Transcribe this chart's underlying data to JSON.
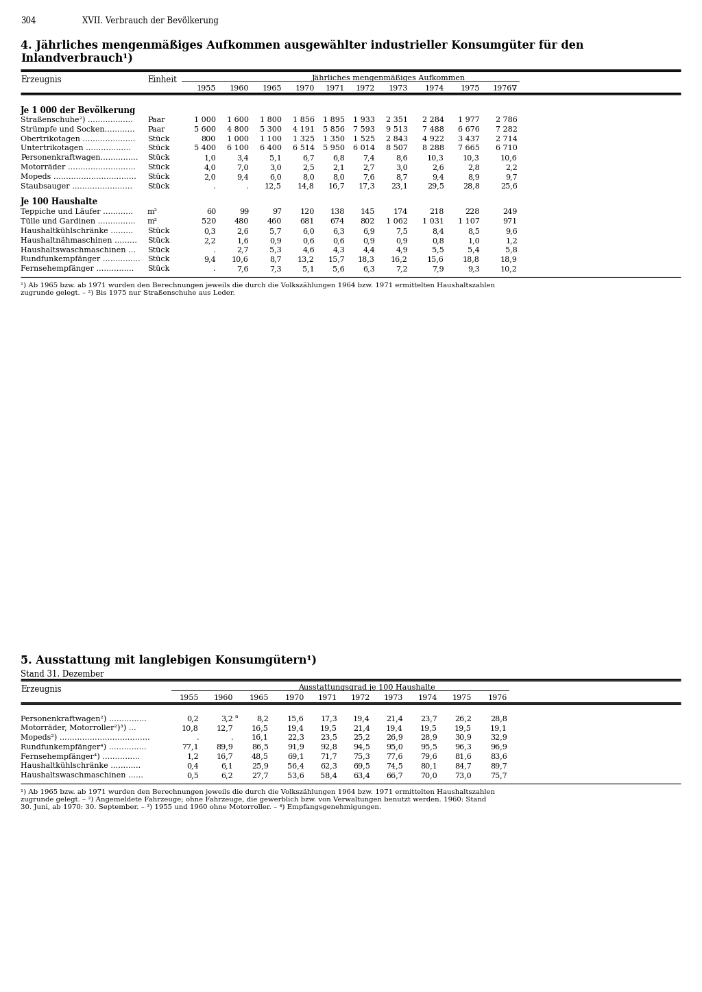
{
  "page_num": "304",
  "chapter": "XVII. Verbrauch der Bevölkerung",
  "title4_line1": "4. Jährliches mengenmäßiges Aufkommen ausgewählter industrieller Konsumgüter für den",
  "title4_line2": "Inlandverbrauch¹)",
  "table4_header_left": "Erzeugnis",
  "table4_header_einheit": "Einheit",
  "table4_span_header": "Jährliches mengenmäßiges Aufkommen",
  "table4_years": [
    "1955",
    "1960",
    "1965",
    "1970",
    "1971",
    "1972",
    "1973",
    "1974",
    "1975",
    "1976∇"
  ],
  "table4_section1": "Je 1 000 der Bevölkerung",
  "table4_rows1": [
    [
      "Straßenschuhe²) ………………",
      "Paar",
      "1 000",
      "1 600",
      "1 800",
      "1 856",
      "1 895",
      "1 933",
      "2 351",
      "2 284",
      "1 977",
      "2 786"
    ],
    [
      "Strümpfe und Socken…………",
      "Paar",
      "5 600",
      "4 800",
      "5 300",
      "4 191",
      "5 856",
      "7 593",
      "9 513",
      "7 488",
      "6 676",
      "7 282"
    ],
    [
      "Obertrikotagen …………………",
      "Stück",
      "800",
      "1 000",
      "1 100",
      "1 325",
      "1 350",
      "1 525",
      "2 843",
      "4 922",
      "3 437",
      "2 714"
    ],
    [
      "Untertrikotagen ………………",
      "Stück",
      "5 400",
      "6 100",
      "6 400",
      "6 514",
      "5 950",
      "6 014",
      "8 507",
      "8 288",
      "7 665",
      "6 710"
    ],
    [
      "Personenkraftwagen……………",
      "Stück",
      "1,0",
      "3,4",
      "5,1",
      "6,7",
      "6,8",
      "7,4",
      "8,6",
      "10,3",
      "10,3",
      "10,6"
    ],
    [
      "Motorräder ………………………",
      "Stück",
      "4,0",
      "7,0",
      "3,0",
      "2,5",
      "2,1",
      "2,7",
      "3,0",
      "2,6",
      "2,8",
      "2,2"
    ],
    [
      "Mopeds ……………………………",
      "Stück",
      "2,0",
      "9,4",
      "6,0",
      "8,0",
      "8,0",
      "7,6",
      "8,7",
      "9,4",
      "8,9",
      "9,7"
    ],
    [
      "Staubsauger ……………………",
      "Stück",
      ".",
      ".",
      "12,5",
      "14,8",
      "16,7",
      "17,3",
      "23,1",
      "29,5",
      "28,8",
      "25,6"
    ]
  ],
  "table4_section2": "Je 100 Haushalte",
  "table4_rows2": [
    [
      "Teppiche und Läufer …………",
      "m²",
      "60",
      "99",
      "97",
      "120",
      "138",
      "145",
      "174",
      "218",
      "228",
      "249"
    ],
    [
      "Tülle und Gardinen ……………",
      "m²",
      "520",
      "480",
      "460",
      "681",
      "674",
      "802",
      "1 062",
      "1 031",
      "1 107",
      "971"
    ],
    [
      "Haushaltkühlschränke ………",
      "Stück",
      "0,3",
      "2,6",
      "5,7",
      "6,0",
      "6,3",
      "6,9",
      "7,5",
      "8,4",
      "8,5",
      "9,6"
    ],
    [
      "Haushaltnähmaschinen ………",
      "Stück",
      "2,2",
      "1,6",
      "0,9",
      "0,6",
      "0,6",
      "0,9",
      "0,9",
      "0,8",
      "1,0",
      "1,2"
    ],
    [
      "Haushaltswaschmaschinen …",
      "Stück",
      ".",
      "2,7",
      "5,3",
      "4,6",
      "4,3",
      "4,4",
      "4,9",
      "5,5",
      "5,4",
      "5,8"
    ],
    [
      "Rundfunkempfänger ……………",
      "Stück",
      "9,4",
      "10,6",
      "8,7",
      "13,2",
      "15,7",
      "18,3",
      "16,2",
      "15,6",
      "18,8",
      "18,9"
    ],
    [
      "Fernsehempfänger ……………",
      "Stück",
      ".",
      "7,6",
      "7,3",
      "5,1",
      "5,6",
      "6,3",
      "7,2",
      "7,9",
      "9,3",
      "10,2"
    ]
  ],
  "footnote4_lines": [
    "¹) Ab 1965 bzw. ab 1971 wurden den Berechnungen jeweils die durch die Volkszählungen 1964 bzw. 1971 ermittelten Haushaltszahlen",
    "zugrunde gelegt. – ²) Bis 1975 nur Straßenschuhe aus Leder."
  ],
  "title5": "5. Ausstattung mit langlebigen Konsumgütern¹)",
  "subtitle5": "Stand 31. Dezember",
  "table5_header_left": "Erzeugnis",
  "table5_span_header": "Ausstattungsgrad je 100 Haushalte",
  "table5_years": [
    "1955",
    "1960",
    "1965",
    "1970",
    "1971",
    "1972",
    "1973",
    "1974",
    "1975",
    "1976"
  ],
  "table5_rows": [
    [
      "Personenkraftwagen²) ……………",
      "0,2",
      "3,2",
      "8,2",
      "15,6",
      "17,3",
      "19,4",
      "21,4",
      "23,7",
      "26,2",
      "28,8"
    ],
    [
      "Motorräder, Motorroller²)³) …",
      "10,8",
      "12,7",
      "16,5",
      "19,4",
      "19,5",
      "21,4",
      "19,4",
      "19,5",
      "19,5",
      "19,1"
    ],
    [
      "Mopeds²) ………………………………",
      ".",
      ".",
      "16,1",
      "22,3",
      "23,5",
      "25,2",
      "26,9",
      "28,9",
      "30,9",
      "32,9"
    ],
    [
      "Rundfunkempfänger⁴) ……………",
      "77,1",
      "89,9",
      "86,5",
      "91,9",
      "92,8",
      "94,5",
      "95,0",
      "95,5",
      "96,3",
      "96,9"
    ],
    [
      "Fernsehempfänger⁴) ……………",
      "1,2",
      "16,7",
      "48,5",
      "69,1",
      "71,7",
      "75,3",
      "77,6",
      "79,6",
      "81,6",
      "83,6"
    ],
    [
      "Haushaltkühlschränke …………",
      "0,4",
      "6,1",
      "25,9",
      "56,4",
      "62,3",
      "69,5",
      "74,5",
      "80,1",
      "84,7",
      "89,7"
    ],
    [
      "Haushaltswaschmaschinen ……",
      "0,5",
      "6,2",
      "27,7",
      "53,6",
      "58,4",
      "63,4",
      "66,7",
      "70,0",
      "73,0",
      "75,7"
    ]
  ],
  "footnote5_lines": [
    "¹) Ab 1965 bzw. ab 1971 wurden den Berechnungen jeweils die durch die Volkszählungen 1964 bzw. 1971 ermittelten Haushaltszahlen",
    "zugrunde gelegt. – ²) Angemeldete Fahrzeuge; ohne Fahrzeuge, die gewerblich bzw. von Verwaltungen benutzt werden. 1960: Stand",
    "30. Juni, ab 1970: 30. September. – ³) 1955 und 1960 ohne Motorroller. – ⁴) Empfangsgenehmigungen."
  ]
}
